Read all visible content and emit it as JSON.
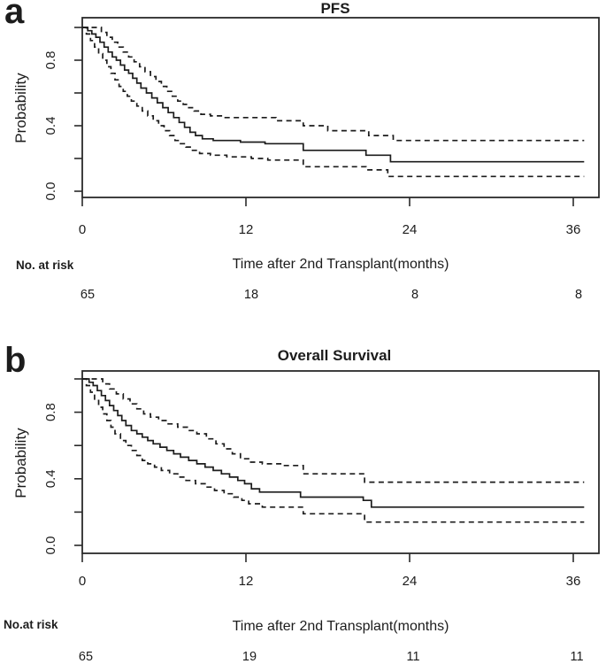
{
  "figure": {
    "background": "#ffffff",
    "ink_color": "#1c1c1c",
    "panels": [
      {
        "letter": "a",
        "title": "PFS",
        "ylabel": "Probability",
        "xlabel": "Time after 2nd Transplant(months)",
        "risk_label": "No. at risk",
        "y_tick_labels": [
          "0.0",
          "0.4",
          "0.8"
        ],
        "x_tick_labels": [
          "0",
          "12",
          "24",
          "36"
        ],
        "risk_counts": [
          "65",
          "18",
          "8",
          "8"
        ]
      },
      {
        "letter": "b",
        "title": "Overall Survival",
        "ylabel": "Probability",
        "xlabel": "Time after 2nd Transplant(months)",
        "risk_label": "No.at risk",
        "y_tick_labels": [
          "0.0",
          "0.4",
          "0.8"
        ],
        "x_tick_labels": [
          "0",
          "12",
          "24",
          "36"
        ],
        "risk_counts": [
          "65",
          "19",
          "11",
          "11"
        ]
      }
    ]
  },
  "chart_data": [
    {
      "type": "line",
      "subtype": "kaplan-meier-step",
      "title": "PFS",
      "xlabel": "Time after 2nd Transplant(months)",
      "ylabel": "Probability",
      "xlim": [
        0,
        37.9
      ],
      "ylim": [
        0,
        1
      ],
      "x_ticks": [
        0,
        12,
        24,
        36
      ],
      "y_ticks": [
        0,
        0.2,
        0.4,
        0.6,
        0.8,
        1.0
      ],
      "grid": false,
      "legend": "none",
      "at_risk": {
        "times": [
          0,
          12,
          24,
          36
        ],
        "counts": [
          65,
          18,
          8,
          8
        ]
      },
      "series": [
        {
          "name": "pfs-estimate",
          "style": "solid",
          "points": [
            [
              0,
              1
            ],
            [
              0.4,
              0.98
            ],
            [
              0.7,
              0.96
            ],
            [
              1,
              0.94
            ],
            [
              1.3,
              0.91
            ],
            [
              1.6,
              0.88
            ],
            [
              1.9,
              0.85
            ],
            [
              2.2,
              0.82
            ],
            [
              2.5,
              0.8
            ],
            [
              2.8,
              0.77
            ],
            [
              3.1,
              0.74
            ],
            [
              3.4,
              0.72
            ],
            [
              3.7,
              0.69
            ],
            [
              4,
              0.66
            ],
            [
              4.3,
              0.63
            ],
            [
              4.7,
              0.6
            ],
            [
              5.1,
              0.57
            ],
            [
              5.5,
              0.54
            ],
            [
              5.9,
              0.51
            ],
            [
              6.3,
              0.48
            ],
            [
              6.7,
              0.45
            ],
            [
              7.1,
              0.42
            ],
            [
              7.5,
              0.39
            ],
            [
              7.9,
              0.36
            ],
            [
              8.3,
              0.34
            ],
            [
              8.8,
              0.32
            ],
            [
              9.6,
              0.31
            ],
            [
              11.6,
              0.3
            ],
            [
              13.4,
              0.29
            ],
            [
              16.2,
              0.25
            ],
            [
              20.8,
              0.22
            ],
            [
              22.6,
              0.18
            ],
            [
              36.8,
              0.18
            ]
          ]
        },
        {
          "name": "upper-95ci",
          "style": "dashed",
          "points": [
            [
              0,
              1
            ],
            [
              1.1,
              1
            ],
            [
              1.4,
              0.97
            ],
            [
              1.8,
              0.94
            ],
            [
              2.2,
              0.91
            ],
            [
              2.6,
              0.88
            ],
            [
              3,
              0.85
            ],
            [
              3.4,
              0.82
            ],
            [
              3.8,
              0.79
            ],
            [
              4.2,
              0.76
            ],
            [
              4.6,
              0.73
            ],
            [
              5,
              0.7
            ],
            [
              5.4,
              0.67
            ],
            [
              5.8,
              0.64
            ],
            [
              6.2,
              0.61
            ],
            [
              6.6,
              0.58
            ],
            [
              7,
              0.55
            ],
            [
              7.4,
              0.53
            ],
            [
              7.8,
              0.51
            ],
            [
              8.2,
              0.49
            ],
            [
              8.7,
              0.47
            ],
            [
              9.4,
              0.46
            ],
            [
              10.4,
              0.45
            ],
            [
              14.2,
              0.43
            ],
            [
              16.2,
              0.4
            ],
            [
              18,
              0.37
            ],
            [
              21,
              0.34
            ],
            [
              22.8,
              0.31
            ],
            [
              36.8,
              0.31
            ]
          ]
        },
        {
          "name": "lower-95ci",
          "style": "dashed",
          "points": [
            [
              0,
              1
            ],
            [
              0.3,
              0.96
            ],
            [
              0.6,
              0.92
            ],
            [
              0.9,
              0.88
            ],
            [
              1.2,
              0.84
            ],
            [
              1.5,
              0.8
            ],
            [
              1.8,
              0.76
            ],
            [
              2.1,
              0.72
            ],
            [
              2.4,
              0.68
            ],
            [
              2.7,
              0.64
            ],
            [
              3,
              0.61
            ],
            [
              3.3,
              0.58
            ],
            [
              3.6,
              0.55
            ],
            [
              4,
              0.52
            ],
            [
              4.4,
              0.49
            ],
            [
              4.8,
              0.46
            ],
            [
              5.2,
              0.43
            ],
            [
              5.6,
              0.4
            ],
            [
              6,
              0.37
            ],
            [
              6.4,
              0.34
            ],
            [
              6.8,
              0.31
            ],
            [
              7.2,
              0.29
            ],
            [
              7.6,
              0.27
            ],
            [
              8,
              0.25
            ],
            [
              8.6,
              0.23
            ],
            [
              9.4,
              0.22
            ],
            [
              10.6,
              0.21
            ],
            [
              12.4,
              0.2
            ],
            [
              13.6,
              0.19
            ],
            [
              16.2,
              0.15
            ],
            [
              20.8,
              0.13
            ],
            [
              22.4,
              0.09
            ],
            [
              36.8,
              0.09
            ]
          ]
        }
      ]
    },
    {
      "type": "line",
      "subtype": "kaplan-meier-step",
      "title": "Overall Survival",
      "xlabel": "Time after 2nd Transplant(months)",
      "ylabel": "Probability",
      "xlim": [
        0,
        37.9
      ],
      "ylim": [
        0,
        1
      ],
      "x_ticks": [
        0,
        12,
        24,
        36
      ],
      "y_ticks": [
        0,
        0.2,
        0.4,
        0.6,
        0.8,
        1.0
      ],
      "grid": false,
      "legend": "none",
      "at_risk": {
        "times": [
          0,
          12,
          24,
          36
        ],
        "counts": [
          65,
          19,
          11,
          11
        ]
      },
      "series": [
        {
          "name": "os-estimate",
          "style": "solid",
          "points": [
            [
              0,
              1
            ],
            [
              0.5,
              0.98
            ],
            [
              0.8,
              0.96
            ],
            [
              1.1,
              0.93
            ],
            [
              1.4,
              0.9
            ],
            [
              1.7,
              0.87
            ],
            [
              2,
              0.84
            ],
            [
              2.3,
              0.81
            ],
            [
              2.6,
              0.78
            ],
            [
              2.9,
              0.75
            ],
            [
              3.2,
              0.72
            ],
            [
              3.6,
              0.69
            ],
            [
              4,
              0.67
            ],
            [
              4.4,
              0.65
            ],
            [
              4.8,
              0.63
            ],
            [
              5.2,
              0.61
            ],
            [
              5.7,
              0.59
            ],
            [
              6.2,
              0.57
            ],
            [
              6.7,
              0.55
            ],
            [
              7.2,
              0.53
            ],
            [
              7.8,
              0.51
            ],
            [
              8.4,
              0.49
            ],
            [
              9,
              0.47
            ],
            [
              9.6,
              0.45
            ],
            [
              10.2,
              0.43
            ],
            [
              10.8,
              0.41
            ],
            [
              11.4,
              0.39
            ],
            [
              11.9,
              0.37
            ],
            [
              12.4,
              0.34
            ],
            [
              13,
              0.32
            ],
            [
              16,
              0.29
            ],
            [
              20.6,
              0.27
            ],
            [
              21.2,
              0.23
            ],
            [
              36.8,
              0.23
            ]
          ]
        },
        {
          "name": "upper-95ci",
          "style": "dashed",
          "points": [
            [
              0,
              1
            ],
            [
              1.2,
              1
            ],
            [
              1.5,
              0.97
            ],
            [
              2,
              0.94
            ],
            [
              2.5,
              0.91
            ],
            [
              3,
              0.88
            ],
            [
              3.5,
              0.85
            ],
            [
              4,
              0.82
            ],
            [
              4.5,
              0.79
            ],
            [
              5,
              0.77
            ],
            [
              5.6,
              0.75
            ],
            [
              6.3,
              0.73
            ],
            [
              7,
              0.71
            ],
            [
              7.7,
              0.69
            ],
            [
              8.4,
              0.67
            ],
            [
              9.1,
              0.64
            ],
            [
              9.8,
              0.61
            ],
            [
              10.4,
              0.58
            ],
            [
              11,
              0.55
            ],
            [
              11.6,
              0.52
            ],
            [
              12.2,
              0.5
            ],
            [
              13.2,
              0.49
            ],
            [
              14.6,
              0.48
            ],
            [
              16.2,
              0.43
            ],
            [
              20.7,
              0.38
            ],
            [
              36.8,
              0.38
            ]
          ]
        },
        {
          "name": "lower-95ci",
          "style": "dashed",
          "points": [
            [
              0,
              1
            ],
            [
              0.3,
              0.96
            ],
            [
              0.6,
              0.92
            ],
            [
              0.9,
              0.87
            ],
            [
              1.2,
              0.83
            ],
            [
              1.5,
              0.79
            ],
            [
              1.8,
              0.75
            ],
            [
              2.1,
              0.71
            ],
            [
              2.4,
              0.67
            ],
            [
              2.8,
              0.63
            ],
            [
              3.2,
              0.6
            ],
            [
              3.6,
              0.57
            ],
            [
              4,
              0.54
            ],
            [
              4.4,
              0.51
            ],
            [
              4.8,
              0.49
            ],
            [
              5.3,
              0.47
            ],
            [
              5.8,
              0.45
            ],
            [
              6.4,
              0.43
            ],
            [
              7,
              0.41
            ],
            [
              7.6,
              0.39
            ],
            [
              8.3,
              0.37
            ],
            [
              9,
              0.35
            ],
            [
              9.7,
              0.33
            ],
            [
              10.4,
              0.31
            ],
            [
              11.1,
              0.29
            ],
            [
              11.7,
              0.27
            ],
            [
              12.2,
              0.25
            ],
            [
              13.2,
              0.23
            ],
            [
              16.2,
              0.19
            ],
            [
              20.7,
              0.14
            ],
            [
              36.8,
              0.14
            ]
          ]
        }
      ]
    }
  ]
}
